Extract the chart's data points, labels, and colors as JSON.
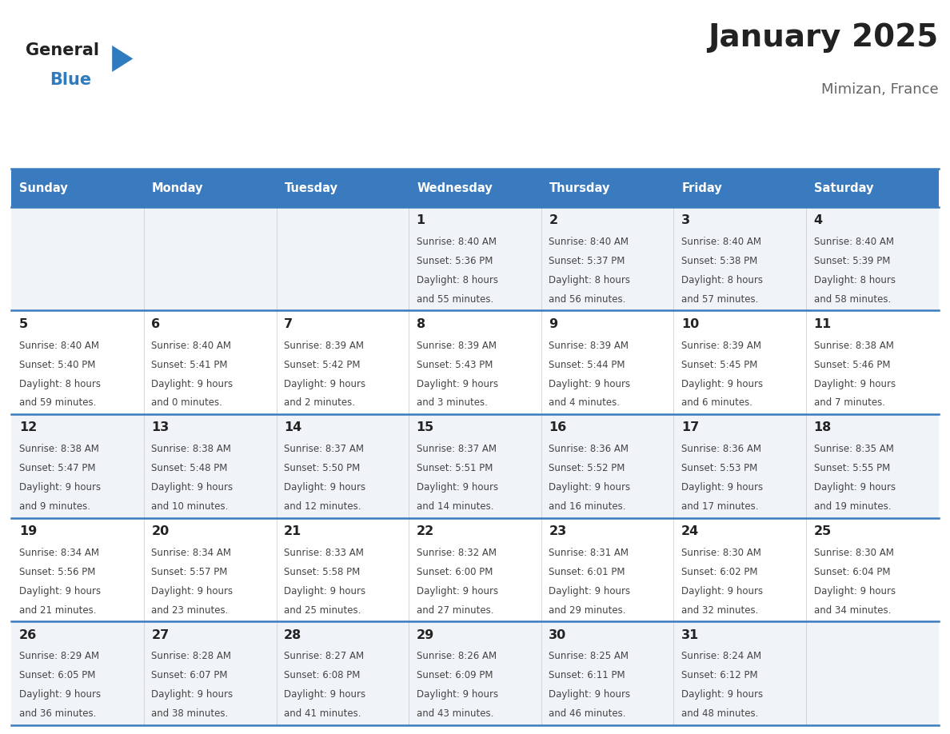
{
  "title": "January 2025",
  "subtitle": "Mimizan, France",
  "days_of_week": [
    "Sunday",
    "Monday",
    "Tuesday",
    "Wednesday",
    "Thursday",
    "Friday",
    "Saturday"
  ],
  "header_bg": "#3a7abf",
  "header_text": "#ffffff",
  "row_bg_even": "#f0f4f8",
  "row_bg_odd": "#ffffff",
  "cell_text_color": "#444444",
  "day_num_color": "#222222",
  "grid_line_color": "#3a7abf",
  "title_color": "#222222",
  "subtitle_color": "#666666",
  "logo_general_color": "#222222",
  "logo_blue_color": "#2e7bbf",
  "calendar_data": [
    [
      null,
      null,
      null,
      {
        "day": 1,
        "sunrise": "8:40 AM",
        "sunset": "5:36 PM",
        "daylight_h": "8 hours",
        "daylight_m": "and 55 minutes."
      },
      {
        "day": 2,
        "sunrise": "8:40 AM",
        "sunset": "5:37 PM",
        "daylight_h": "8 hours",
        "daylight_m": "and 56 minutes."
      },
      {
        "day": 3,
        "sunrise": "8:40 AM",
        "sunset": "5:38 PM",
        "daylight_h": "8 hours",
        "daylight_m": "and 57 minutes."
      },
      {
        "day": 4,
        "sunrise": "8:40 AM",
        "sunset": "5:39 PM",
        "daylight_h": "8 hours",
        "daylight_m": "and 58 minutes."
      }
    ],
    [
      {
        "day": 5,
        "sunrise": "8:40 AM",
        "sunset": "5:40 PM",
        "daylight_h": "8 hours",
        "daylight_m": "and 59 minutes."
      },
      {
        "day": 6,
        "sunrise": "8:40 AM",
        "sunset": "5:41 PM",
        "daylight_h": "9 hours",
        "daylight_m": "and 0 minutes."
      },
      {
        "day": 7,
        "sunrise": "8:39 AM",
        "sunset": "5:42 PM",
        "daylight_h": "9 hours",
        "daylight_m": "and 2 minutes."
      },
      {
        "day": 8,
        "sunrise": "8:39 AM",
        "sunset": "5:43 PM",
        "daylight_h": "9 hours",
        "daylight_m": "and 3 minutes."
      },
      {
        "day": 9,
        "sunrise": "8:39 AM",
        "sunset": "5:44 PM",
        "daylight_h": "9 hours",
        "daylight_m": "and 4 minutes."
      },
      {
        "day": 10,
        "sunrise": "8:39 AM",
        "sunset": "5:45 PM",
        "daylight_h": "9 hours",
        "daylight_m": "and 6 minutes."
      },
      {
        "day": 11,
        "sunrise": "8:38 AM",
        "sunset": "5:46 PM",
        "daylight_h": "9 hours",
        "daylight_m": "and 7 minutes."
      }
    ],
    [
      {
        "day": 12,
        "sunrise": "8:38 AM",
        "sunset": "5:47 PM",
        "daylight_h": "9 hours",
        "daylight_m": "and 9 minutes."
      },
      {
        "day": 13,
        "sunrise": "8:38 AM",
        "sunset": "5:48 PM",
        "daylight_h": "9 hours",
        "daylight_m": "and 10 minutes."
      },
      {
        "day": 14,
        "sunrise": "8:37 AM",
        "sunset": "5:50 PM",
        "daylight_h": "9 hours",
        "daylight_m": "and 12 minutes."
      },
      {
        "day": 15,
        "sunrise": "8:37 AM",
        "sunset": "5:51 PM",
        "daylight_h": "9 hours",
        "daylight_m": "and 14 minutes."
      },
      {
        "day": 16,
        "sunrise": "8:36 AM",
        "sunset": "5:52 PM",
        "daylight_h": "9 hours",
        "daylight_m": "and 16 minutes."
      },
      {
        "day": 17,
        "sunrise": "8:36 AM",
        "sunset": "5:53 PM",
        "daylight_h": "9 hours",
        "daylight_m": "and 17 minutes."
      },
      {
        "day": 18,
        "sunrise": "8:35 AM",
        "sunset": "5:55 PM",
        "daylight_h": "9 hours",
        "daylight_m": "and 19 minutes."
      }
    ],
    [
      {
        "day": 19,
        "sunrise": "8:34 AM",
        "sunset": "5:56 PM",
        "daylight_h": "9 hours",
        "daylight_m": "and 21 minutes."
      },
      {
        "day": 20,
        "sunrise": "8:34 AM",
        "sunset": "5:57 PM",
        "daylight_h": "9 hours",
        "daylight_m": "and 23 minutes."
      },
      {
        "day": 21,
        "sunrise": "8:33 AM",
        "sunset": "5:58 PM",
        "daylight_h": "9 hours",
        "daylight_m": "and 25 minutes."
      },
      {
        "day": 22,
        "sunrise": "8:32 AM",
        "sunset": "6:00 PM",
        "daylight_h": "9 hours",
        "daylight_m": "and 27 minutes."
      },
      {
        "day": 23,
        "sunrise": "8:31 AM",
        "sunset": "6:01 PM",
        "daylight_h": "9 hours",
        "daylight_m": "and 29 minutes."
      },
      {
        "day": 24,
        "sunrise": "8:30 AM",
        "sunset": "6:02 PM",
        "daylight_h": "9 hours",
        "daylight_m": "and 32 minutes."
      },
      {
        "day": 25,
        "sunrise": "8:30 AM",
        "sunset": "6:04 PM",
        "daylight_h": "9 hours",
        "daylight_m": "and 34 minutes."
      }
    ],
    [
      {
        "day": 26,
        "sunrise": "8:29 AM",
        "sunset": "6:05 PM",
        "daylight_h": "9 hours",
        "daylight_m": "and 36 minutes."
      },
      {
        "day": 27,
        "sunrise": "8:28 AM",
        "sunset": "6:07 PM",
        "daylight_h": "9 hours",
        "daylight_m": "and 38 minutes."
      },
      {
        "day": 28,
        "sunrise": "8:27 AM",
        "sunset": "6:08 PM",
        "daylight_h": "9 hours",
        "daylight_m": "and 41 minutes."
      },
      {
        "day": 29,
        "sunrise": "8:26 AM",
        "sunset": "6:09 PM",
        "daylight_h": "9 hours",
        "daylight_m": "and 43 minutes."
      },
      {
        "day": 30,
        "sunrise": "8:25 AM",
        "sunset": "6:11 PM",
        "daylight_h": "9 hours",
        "daylight_m": "and 46 minutes."
      },
      {
        "day": 31,
        "sunrise": "8:24 AM",
        "sunset": "6:12 PM",
        "daylight_h": "9 hours",
        "daylight_m": "and 48 minutes."
      },
      null
    ]
  ]
}
